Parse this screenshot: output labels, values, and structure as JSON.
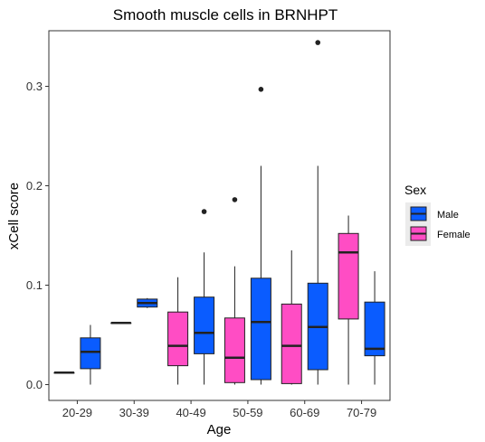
{
  "chart_data": {
    "type": "boxplot",
    "title": "Smooth muscle cells in BRNHPT",
    "xlabel": "Age",
    "ylabel": "xCell score",
    "categories": [
      "20-29",
      "30-39",
      "40-49",
      "50-59",
      "60-69",
      "70-79"
    ],
    "y_ticks": [
      "0.0",
      "0.1",
      "0.2",
      "0.3"
    ],
    "ylim": [
      -0.015,
      0.36
    ],
    "grid": false,
    "legend": {
      "title": "Sex",
      "position": "right",
      "entries": [
        "Male",
        "Female"
      ]
    },
    "series": [
      {
        "name": "Female",
        "color": "#ff4dc4",
        "boxes": [
          {
            "category": "20-29",
            "min": 0.012,
            "q1": 0.012,
            "median": 0.012,
            "q3": 0.012,
            "max": 0.012,
            "outliers": []
          },
          {
            "category": "30-39",
            "min": 0.062,
            "q1": 0.062,
            "median": 0.062,
            "q3": 0.062,
            "max": 0.062,
            "outliers": []
          },
          {
            "category": "40-49",
            "min": 0.0,
            "q1": 0.019,
            "median": 0.039,
            "q3": 0.073,
            "max": 0.108,
            "outliers": []
          },
          {
            "category": "50-59",
            "min": 0.0,
            "q1": 0.002,
            "median": 0.027,
            "q3": 0.067,
            "max": 0.119,
            "outliers": [
              0.186
            ]
          },
          {
            "category": "60-69",
            "min": 0.0,
            "q1": 0.001,
            "median": 0.039,
            "q3": 0.081,
            "max": 0.135,
            "outliers": []
          },
          {
            "category": "70-79",
            "min": 0.0,
            "q1": 0.066,
            "median": 0.133,
            "q3": 0.152,
            "max": 0.17,
            "outliers": []
          }
        ]
      },
      {
        "name": "Male",
        "color": "#0a5cff",
        "boxes": [
          {
            "category": "20-29",
            "min": 0.0,
            "q1": 0.016,
            "median": 0.033,
            "q3": 0.047,
            "max": 0.06,
            "outliers": []
          },
          {
            "category": "30-39",
            "min": 0.077,
            "q1": 0.078,
            "median": 0.082,
            "q3": 0.086,
            "max": 0.087,
            "outliers": []
          },
          {
            "category": "40-49",
            "min": 0.0,
            "q1": 0.031,
            "median": 0.052,
            "q3": 0.088,
            "max": 0.133,
            "outliers": [
              0.174
            ]
          },
          {
            "category": "50-59",
            "min": 0.0,
            "q1": 0.005,
            "median": 0.063,
            "q3": 0.107,
            "max": 0.22,
            "outliers": [
              0.297
            ]
          },
          {
            "category": "60-69",
            "min": 0.0,
            "q1": 0.015,
            "median": 0.058,
            "q3": 0.102,
            "max": 0.22,
            "outliers": [
              0.344
            ]
          },
          {
            "category": "70-79",
            "min": 0.0,
            "q1": 0.029,
            "median": 0.036,
            "q3": 0.083,
            "max": 0.114,
            "outliers": []
          }
        ]
      }
    ]
  }
}
